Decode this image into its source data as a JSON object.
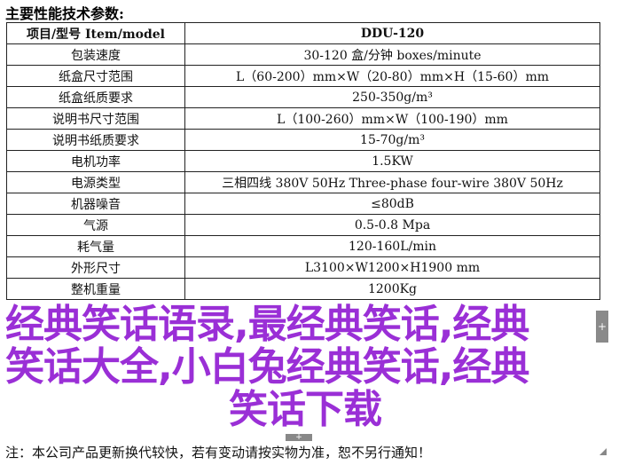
{
  "title": "主要性能技术参数:",
  "header": {
    "item": "项目/型号 Item/model",
    "model": "DDU-120"
  },
  "rows": [
    {
      "item": "包装速度",
      "value": "30-120 盒/分钟 boxes/minute"
    },
    {
      "item": "纸盒尺寸范围",
      "value": "L（60-200）mm×W（20-80）mm×H（15-60）mm"
    },
    {
      "item": "纸盒纸质要求",
      "value": "250-350g/m³"
    },
    {
      "item": "说明书尺寸范围",
      "value": "L（100-260）mm×W（100-190）mm"
    },
    {
      "item": "说明书纸质要求",
      "value": "15-70g/m³"
    },
    {
      "item": "电机功率",
      "value": "1.5KW"
    },
    {
      "item": "电源类型",
      "value": "三相四线 380V 50Hz Three-phase four-wire 380V 50Hz"
    },
    {
      "item": "机器噪音",
      "value": "≤80dB"
    },
    {
      "item": "气源",
      "value": "0.5-0.8 Mpa"
    },
    {
      "item": "耗气量",
      "value": "120-160L/min"
    },
    {
      "item": "外形尺寸",
      "value": "L3100×W1200×H1900 mm"
    },
    {
      "item": "整机重量",
      "value": "1200Kg"
    }
  ],
  "note": "注：本公司产品更新换代较快，若有变动请按实物为准，恕不另行通知！",
  "watermark": {
    "line1": "经典笑话语录,最经典笑话,经典",
    "line2": "笑话大全,小白兔经典笑话,经典",
    "line3": "笑话下载",
    "color": "#9a2fd6"
  },
  "controls": {
    "expand": "+"
  }
}
